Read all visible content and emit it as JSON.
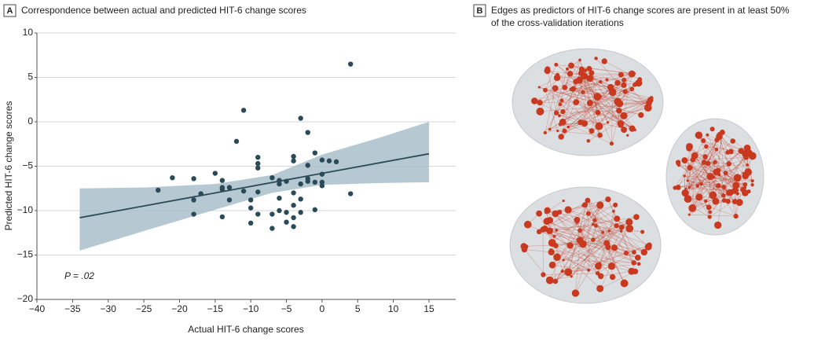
{
  "chart_data": {
    "type": "scatter",
    "panel_label": "A",
    "title": "Correspondence between actual and predicted HIT-6 change scores",
    "x_label": "Actual HIT-6 change scores",
    "y_label": "Predicted HIT-6 change scores",
    "annotation": "P = .02",
    "xlim": [
      -40,
      18.75
    ],
    "ylim": [
      -20,
      10
    ],
    "xticks": [
      {
        "value": -40,
        "label": "−40"
      },
      {
        "value": -35,
        "label": "−35"
      },
      {
        "value": -30,
        "label": "−30"
      },
      {
        "value": -25,
        "label": "−25"
      },
      {
        "value": -20,
        "label": "−20"
      },
      {
        "value": -15,
        "label": "−15"
      },
      {
        "value": -10,
        "label": "−10"
      },
      {
        "value": -5,
        "label": "−5"
      },
      0,
      5,
      10,
      15
    ],
    "yticks": [
      {
        "value": -20,
        "label": "−20"
      },
      {
        "value": -15,
        "label": "−15"
      },
      {
        "value": -10,
        "label": "−10"
      },
      {
        "value": -5,
        "label": "−5"
      },
      0,
      5,
      10
    ],
    "grid": true,
    "color": "#2b4a58",
    "x": [
      4,
      -11,
      -3,
      -2,
      -12,
      -1,
      -9,
      -4,
      0,
      1,
      2,
      -4,
      -9,
      -2,
      -9,
      -15,
      0,
      -21,
      -18,
      -7,
      -2,
      -14,
      -6,
      -5,
      -2,
      -1,
      0,
      -6,
      -3,
      0,
      -13,
      -14,
      -23,
      -11,
      -14,
      -17,
      -9,
      4,
      -4,
      -18,
      -13,
      -10,
      -6,
      -3,
      -10,
      -4,
      -6,
      -1,
      -9,
      -7,
      -5,
      -3,
      -18,
      -14,
      -4,
      -10,
      -5,
      -7,
      -4
    ],
    "values": [
      6.5,
      1.3,
      0.4,
      -1.2,
      -2.2,
      -3.5,
      -4.0,
      -3.9,
      -4.3,
      -4.4,
      -4.5,
      -4.4,
      -4.7,
      -4.9,
      -5.2,
      -5.8,
      -5.9,
      -6.3,
      -6.4,
      -6.3,
      -6.4,
      -6.6,
      -6.6,
      -6.7,
      -6.7,
      -6.8,
      -6.8,
      -7.0,
      -7.0,
      -7.2,
      -7.4,
      -7.4,
      -7.7,
      -7.8,
      -7.6,
      -8.1,
      -7.9,
      -8.1,
      -8.0,
      -8.8,
      -8.8,
      -8.8,
      -8.6,
      -8.7,
      -9.7,
      -9.4,
      -10.0,
      -9.9,
      -10.4,
      -10.4,
      -10.2,
      -10.2,
      -10.4,
      -10.7,
      -10.8,
      -11.4,
      -11.3,
      -12.0,
      -11.8
    ],
    "fit": {
      "x": [
        -34,
        15
      ],
      "values": [
        -10.8,
        -3.6
      ],
      "color": "#2b4a58"
    },
    "band": {
      "x": [
        -34,
        -25,
        -15,
        -7,
        0,
        8,
        15
      ],
      "upper": [
        -7.5,
        -7.4,
        -7.0,
        -6.0,
        -3.7,
        -1.8,
        0
      ],
      "lower": [
        -14.5,
        -12.3,
        -9.9,
        -8.0,
        -7.1,
        -6.9,
        -6.8
      ],
      "color": "#a9bfca"
    }
  },
  "panel_b": {
    "label": "B",
    "title_lines": [
      "Edges as predictors of HIT-6 change scores are present in at least 50%",
      "of the cross-validation iterations"
    ]
  }
}
